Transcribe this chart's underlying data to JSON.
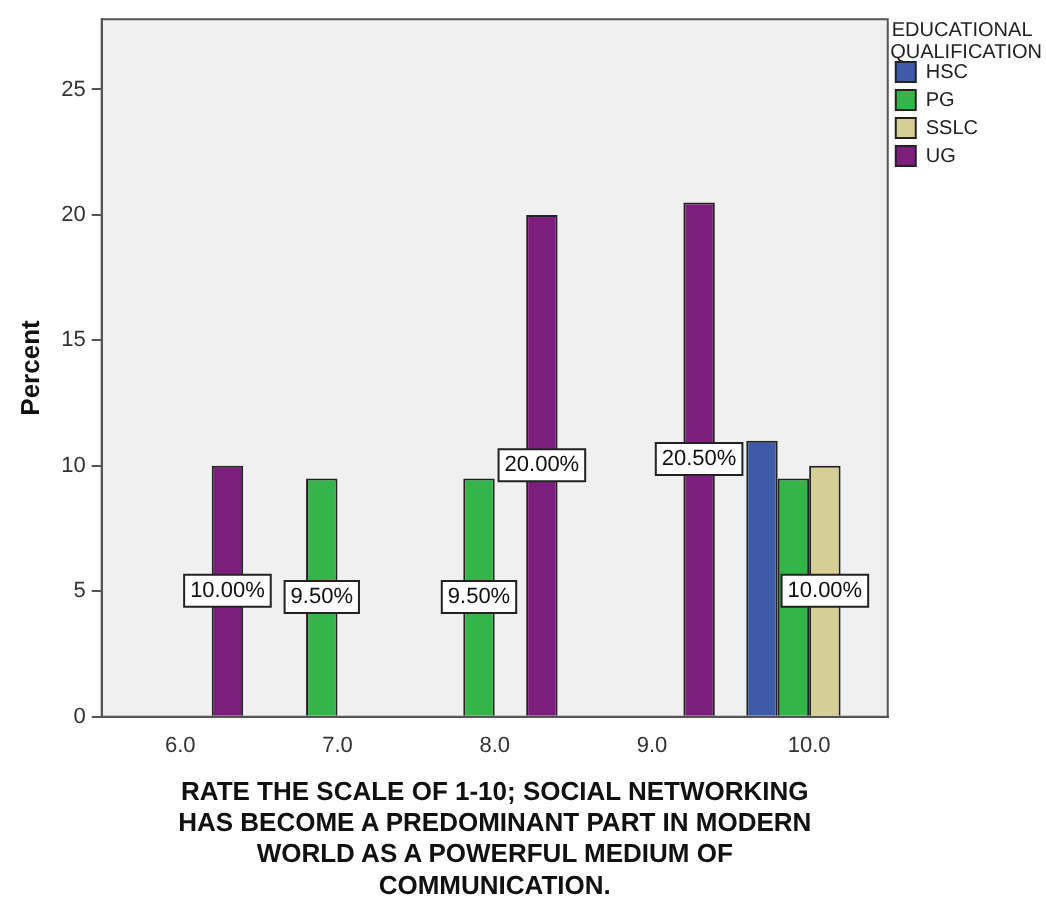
{
  "chart_data": {
    "type": "bar",
    "xlabel": "RATE THE SCALE OF 1-10; SOCIAL NETWORKING HAS BECOME A PREDOMINANT PART IN MODERN WORLD AS A POWERFUL MEDIUM OF COMMUNICATION.",
    "ylabel": "Percent",
    "legend_title": "EDUCATIONAL QUALIFICATION",
    "legend": "top right",
    "categories": [
      "6.0",
      "7.0",
      "8.0",
      "9.0",
      "10.0"
    ],
    "series": [
      {
        "name": "HSC",
        "color": "#3e5aa8",
        "values": [
          null,
          null,
          null,
          null,
          11
        ]
      },
      {
        "name": "PG",
        "color": "#33b54a",
        "values": [
          null,
          9.5,
          9.5,
          null,
          9.5
        ],
        "value_labels": [
          null,
          "9.50%",
          "9.50%",
          null,
          null
        ]
      },
      {
        "name": "SSLC",
        "color": "#d6cf95",
        "values": [
          null,
          null,
          null,
          null,
          10
        ],
        "value_labels": [
          null,
          null,
          null,
          null,
          "10.00%"
        ]
      },
      {
        "name": "UG",
        "color": "#7c1f7c",
        "values": [
          10,
          null,
          20,
          20.5,
          null
        ],
        "value_labels": [
          "10.00%",
          null,
          "20.00%",
          "20.50%",
          null
        ]
      }
    ],
    "ylim": [
      0,
      27.8
    ],
    "yticks": [
      0,
      5,
      10,
      15,
      20,
      25
    ],
    "grid": false
  }
}
